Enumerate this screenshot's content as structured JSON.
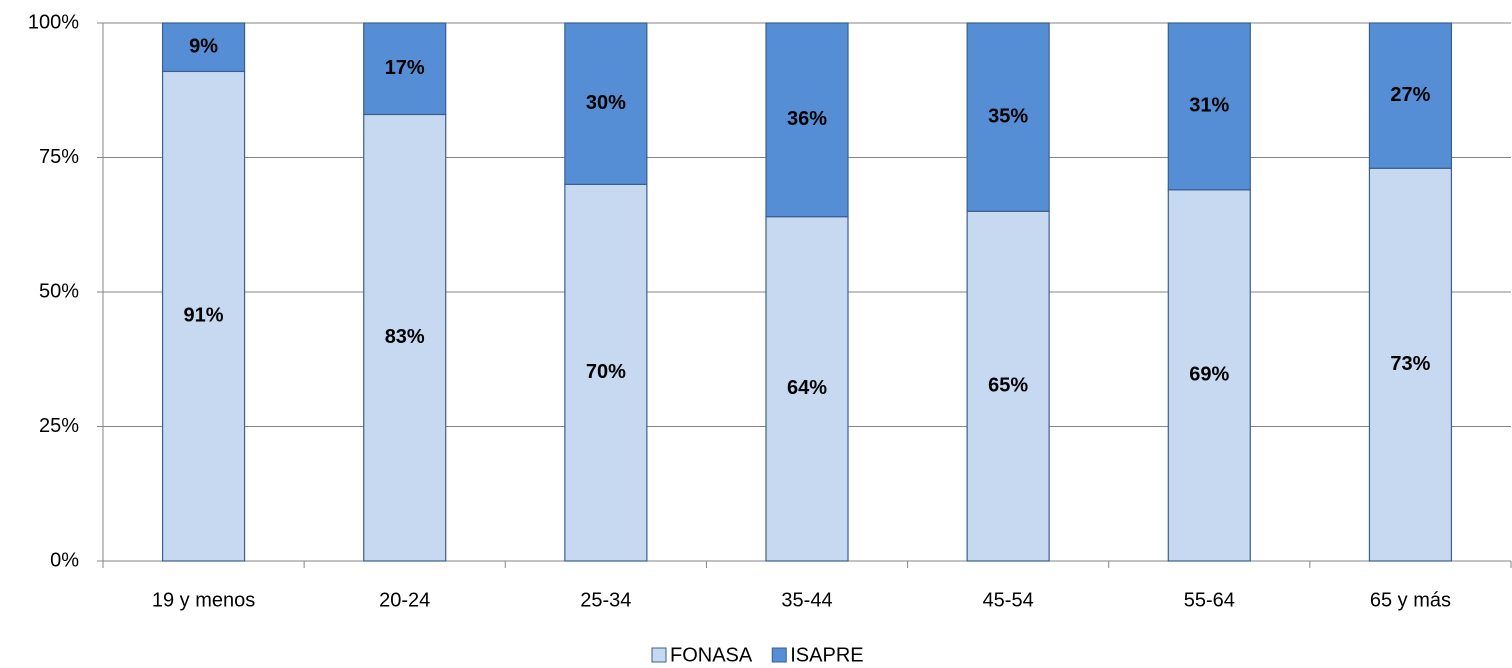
{
  "chart_data": {
    "type": "stacked_bar",
    "categories": [
      "19 y menos",
      "20-24",
      "25-34",
      "35-44",
      "45-54",
      "55-64",
      "65 y más"
    ],
    "series": [
      {
        "name": "FONASA",
        "color": "#c6d9f1",
        "values": [
          91,
          83,
          70,
          64,
          65,
          69,
          73
        ],
        "value_labels": [
          "91%",
          "83%",
          "70%",
          "64%",
          "65%",
          "69%",
          "73%"
        ]
      },
      {
        "name": "ISAPRE",
        "color": "#558ed5",
        "values": [
          9,
          17,
          30,
          36,
          35,
          31,
          27
        ],
        "value_labels": [
          "9%",
          "17%",
          "30%",
          "36%",
          "35%",
          "31%",
          "27%"
        ]
      }
    ],
    "ylim": [
      0,
      100
    ],
    "yticks": [
      {
        "value": 0,
        "label": "0%"
      },
      {
        "value": 25,
        "label": "25%"
      },
      {
        "value": 50,
        "label": "50%"
      },
      {
        "value": 75,
        "label": "75%"
      },
      {
        "value": 100,
        "label": "100%"
      }
    ],
    "grid": true,
    "legend": "bottom"
  }
}
